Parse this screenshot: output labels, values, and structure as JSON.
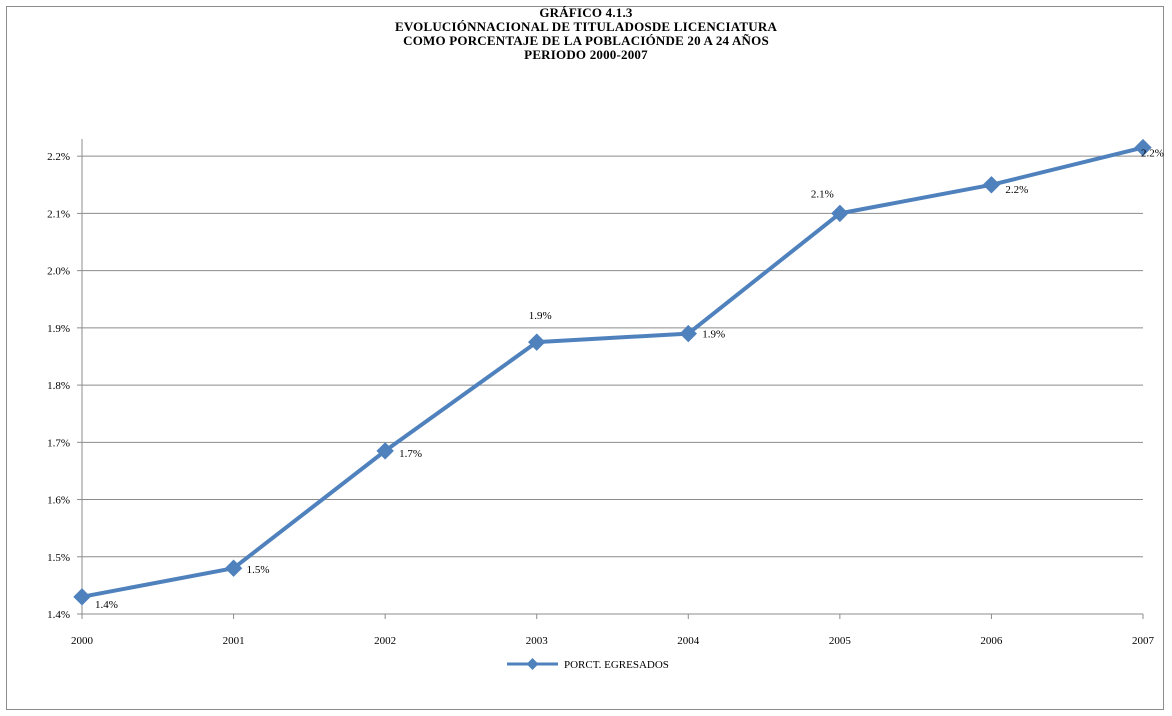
{
  "chart_data": {
    "type": "line",
    "title_lines": [
      "GRÁFICO 4.1.3",
      "EVOLUCIÓNNACIONAL DE TITULADOSDE LICENCIATURA",
      "COMO PORCENTAJE DE LA POBLACIÓNDE 20 A 24 AÑOS",
      "PERIODO 2000-2007"
    ],
    "categories": [
      "2000",
      "2001",
      "2002",
      "2003",
      "2004",
      "2005",
      "2006",
      "2007"
    ],
    "series": [
      {
        "name": "PORCT. EGRESADOS",
        "values": [
          1.43,
          1.48,
          1.685,
          1.875,
          1.89,
          2.1,
          2.15,
          2.215
        ],
        "data_labels": [
          "1.4%",
          "1.5%",
          "1.7%",
          "1.9%",
          "1.9%",
          "2.1%",
          "2.2%",
          "2.2%"
        ]
      }
    ],
    "ylim": [
      1.4,
      2.2
    ],
    "yticks": [
      "1.4%",
      "1.5%",
      "1.6%",
      "1.7%",
      "1.8%",
      "1.9%",
      "2.0%",
      "2.1%",
      "2.2%"
    ],
    "ytick_values": [
      1.4,
      1.5,
      1.6,
      1.7,
      1.8,
      1.9,
      2.0,
      2.1,
      2.2
    ],
    "grid": true,
    "legend_position": "bottom",
    "line_color": "#4f81bd",
    "grid_color": "#8c8c8c"
  }
}
